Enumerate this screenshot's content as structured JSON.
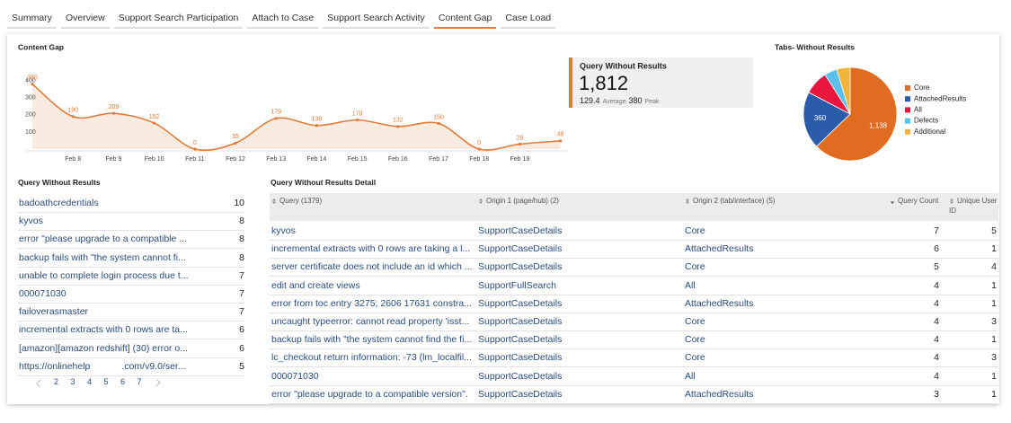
{
  "tabs": [
    {
      "label": "Summary"
    },
    {
      "label": "Overview"
    },
    {
      "label": "Support Search Participation"
    },
    {
      "label": "Attach to Case"
    },
    {
      "label": "Support Search Activity"
    },
    {
      "label": "Content Gap",
      "active": true
    },
    {
      "label": "Case Load"
    }
  ],
  "chart_data": [
    {
      "type": "line",
      "title": "Content Gap",
      "categories": [
        null,
        "Feb 8",
        "Feb 9",
        "Feb 10",
        "Feb 11",
        "Feb 12",
        "Feb 13",
        "Feb 14",
        "Feb 15",
        "Feb 16",
        "Feb 17",
        "Feb 18",
        "Feb 19",
        null
      ],
      "values": [
        380,
        190,
        209,
        152,
        0,
        35,
        179,
        138,
        170,
        132,
        150,
        0,
        29,
        48
      ],
      "color": "#e07b39",
      "area": true,
      "data_labels": true,
      "ylim": [
        0,
        420
      ],
      "yticks": [
        100,
        200,
        300,
        400
      ]
    },
    {
      "type": "pie",
      "title": "Tabs- Without Results",
      "categories": [
        "Core",
        "AttachedResults",
        "All",
        "Defects",
        "Additional"
      ],
      "values": [
        1138,
        360,
        150,
        80,
        84
      ],
      "value_labels": [
        "1,138",
        "360",
        null,
        null,
        null
      ],
      "colors": [
        "#e06c1f",
        "#2a5caa",
        "#e8163c",
        "#5bc0eb",
        "#f0b43c"
      ],
      "legend": "right"
    }
  ],
  "kpi": {
    "title": "Query Without Results",
    "value": "1,812",
    "average": "129.4",
    "average_label": "Average",
    "peak": "380",
    "peak_label": "Peak"
  },
  "query_list": {
    "title": "Query Without Results",
    "rows": [
      [
        "badoathcredentials",
        10
      ],
      [
        "kyvos",
        8
      ],
      [
        "error \"please upgrade to a compatible ...",
        8
      ],
      [
        "backup fails with \"the system cannot fi...",
        8
      ],
      [
        "unable to complete login process due t...",
        7
      ],
      [
        "000071030",
        7
      ],
      [
        "failoverasmaster",
        7
      ],
      [
        "incremental extracts with 0 rows are ta...",
        6
      ],
      [
        "[amazon][amazon redshift] (30) error o...",
        6
      ],
      [
        "https://onlinehelp            .com/v9.0/ser...",
        5
      ]
    ],
    "pages": [
      2,
      3,
      4,
      5,
      6,
      7
    ]
  },
  "detail_table": {
    "title": "Query Without Results Detail",
    "columns": [
      {
        "label": "Query (1379)",
        "sort": "both"
      },
      {
        "label": "Origin 1 (page/hub) (2)",
        "sort": "both"
      },
      {
        "label": "Origin 2 (tab/interface) (5)",
        "sort": "both"
      },
      {
        "label": "Query Count",
        "sort": "desc"
      },
      {
        "label": "Unique User ID",
        "sort": "both"
      }
    ],
    "rows": [
      [
        "kyvos",
        "SupportCaseDetails",
        "Core",
        7,
        5
      ],
      [
        "incremental extracts with 0 rows are taking a l...",
        "SupportCaseDetails",
        "AttachedResults",
        6,
        1
      ],
      [
        "server certificate does not include an id which ...",
        "SupportCaseDetails",
        "Core",
        5,
        4
      ],
      [
        "edit and create views",
        "SupportFullSearch",
        "All",
        4,
        1
      ],
      [
        "error from toc entry 3275; 2606 17631 constra...",
        "SupportCaseDetails",
        "AttachedResults",
        4,
        1
      ],
      [
        "uncaught typeerror: cannot read property 'isst...",
        "SupportCaseDetails",
        "Core",
        4,
        3
      ],
      [
        "backup fails with \"the system cannot find the fi...",
        "SupportCaseDetails",
        "Core",
        4,
        1
      ],
      [
        "lc_checkout return information: -73 (lm_localfil...",
        "SupportCaseDetails",
        "Core",
        4,
        3
      ],
      [
        "000071030",
        "SupportCaseDetails",
        "All",
        4,
        1
      ],
      [
        "error \"please upgrade to a compatible version\".",
        "SupportCaseDetails",
        "AttachedResults",
        3,
        1
      ]
    ]
  }
}
